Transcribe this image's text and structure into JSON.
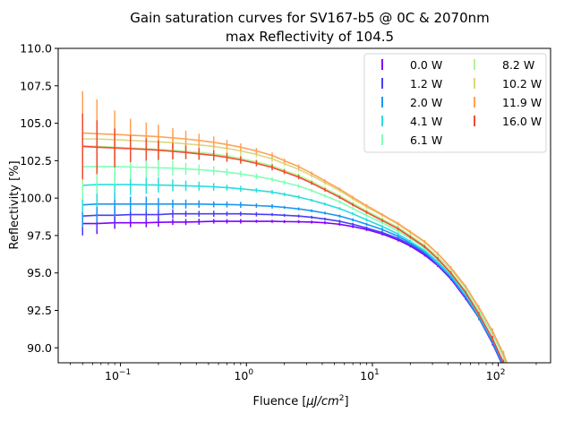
{
  "chart_data": {
    "type": "line",
    "title_lines": [
      "Gain saturation curves for SV167-b5 @ 0C & 2070nm",
      "max Reflectivity of 104.5"
    ],
    "xlabel": "Fluence [",
    "xlabel_unit": "μJ/cm",
    "xlabel_power": "2",
    "xlabel_end": "]",
    "ylabel": "Reflectivity [%]",
    "x_scale": "log",
    "xlim": [
      0.032,
      260
    ],
    "ylim": [
      89.0,
      110.0
    ],
    "x_major_ticks": [
      {
        "value": 0.1,
        "base": "10",
        "exp": "−1"
      },
      {
        "value": 1,
        "base": "10",
        "exp": "0"
      },
      {
        "value": 10,
        "base": "10",
        "exp": "1"
      },
      {
        "value": 100,
        "base": "10",
        "exp": "2"
      }
    ],
    "y_ticks": [
      "90.0",
      "92.5",
      "95.0",
      "97.5",
      "100.0",
      "102.5",
      "105.0",
      "107.5",
      "110.0"
    ],
    "legend": {
      "placement": "top-right",
      "columns": 2
    },
    "x_points": [
      0.05,
      0.065,
      0.09,
      0.12,
      0.16,
      0.2,
      0.26,
      0.33,
      0.42,
      0.55,
      0.7,
      0.9,
      1.2,
      1.6,
      2.0,
      2.6,
      3.3,
      4.2,
      5.5,
      7.0,
      9.0,
      12.0,
      16.0,
      20.0,
      26.0,
      33.0,
      42.0,
      55.0,
      70.0,
      90.0,
      110.0,
      130.0
    ],
    "series": [
      {
        "name": "0.0 W",
        "color": "#8000ff",
        "x": [
          0.05,
          0.065,
          0.09,
          0.12,
          0.16,
          0.2,
          0.26,
          0.33,
          0.42,
          0.55,
          0.7,
          0.9,
          1.2,
          1.6,
          2.0,
          2.6,
          3.3,
          4.2,
          5.5,
          7.0,
          9.0,
          12.0,
          16.0,
          20.0,
          26.0,
          33.0,
          42.0,
          55.0,
          70.0,
          90.0,
          110.0,
          130.0
        ],
        "y": [
          98.3,
          98.3,
          98.35,
          98.35,
          98.35,
          98.38,
          98.4,
          98.4,
          98.42,
          98.45,
          98.45,
          98.45,
          98.45,
          98.45,
          98.43,
          98.42,
          98.4,
          98.35,
          98.25,
          98.1,
          97.9,
          97.6,
          97.2,
          96.8,
          96.2,
          95.5,
          94.6,
          93.3,
          92.0,
          90.3,
          88.7,
          87.0
        ],
        "err": [
          0.7,
          0.7,
          0.4,
          0.3,
          0.3,
          0.3,
          0.2,
          0.2,
          0.2,
          0.15,
          0.15,
          0.15,
          0.1,
          0.1,
          0.1,
          0.1,
          0.1,
          0.1,
          0.1,
          0.1,
          0.1,
          0.1,
          0.1,
          0.1,
          0.1,
          0.1,
          0.1,
          0.1,
          0.1,
          0.15,
          0.2,
          0.2
        ]
      },
      {
        "name": "1.2 W",
        "color": "#4a3ef5",
        "x": [
          0.05,
          0.065,
          0.09,
          0.12,
          0.16,
          0.2,
          0.26,
          0.33,
          0.42,
          0.55,
          0.7,
          0.9,
          1.2,
          1.6,
          2.0,
          2.6,
          3.3,
          4.2,
          5.5,
          7.0,
          9.0,
          12.0,
          16.0,
          20.0,
          26.0,
          33.0,
          42.0,
          55.0,
          70.0,
          90.0,
          110.0,
          130.0
        ],
        "y": [
          98.8,
          98.85,
          98.85,
          98.9,
          98.9,
          98.9,
          98.95,
          98.95,
          98.95,
          98.95,
          98.95,
          98.95,
          98.92,
          98.9,
          98.85,
          98.8,
          98.72,
          98.6,
          98.45,
          98.25,
          98.0,
          97.7,
          97.3,
          96.9,
          96.3,
          95.6,
          94.7,
          93.4,
          92.0,
          90.3,
          88.7,
          87.1
        ],
        "err": [
          1.3,
          1.0,
          0.6,
          0.4,
          0.4,
          0.3,
          0.3,
          0.2,
          0.2,
          0.2,
          0.15,
          0.15,
          0.15,
          0.1,
          0.1,
          0.1,
          0.1,
          0.1,
          0.1,
          0.1,
          0.1,
          0.1,
          0.1,
          0.1,
          0.1,
          0.1,
          0.1,
          0.1,
          0.15,
          0.15,
          0.2,
          0.2
        ]
      },
      {
        "name": "2.0 W",
        "color": "#1996f3",
        "x": [
          0.05,
          0.065,
          0.09,
          0.12,
          0.16,
          0.2,
          0.26,
          0.33,
          0.42,
          0.55,
          0.7,
          0.9,
          1.2,
          1.6,
          2.0,
          2.6,
          3.3,
          4.2,
          5.5,
          7.0,
          9.0,
          12.0,
          16.0,
          20.0,
          26.0,
          33.0,
          42.0,
          55.0,
          70.0,
          90.0,
          110.0,
          130.0
        ],
        "y": [
          99.55,
          99.6,
          99.6,
          99.6,
          99.6,
          99.6,
          99.6,
          99.6,
          99.6,
          99.58,
          99.57,
          99.55,
          99.5,
          99.45,
          99.38,
          99.28,
          99.15,
          99.0,
          98.8,
          98.55,
          98.25,
          97.9,
          97.45,
          97.0,
          96.4,
          95.6,
          94.7,
          93.4,
          92.0,
          90.4,
          88.8,
          87.2
        ],
        "err": [
          1.5,
          1.2,
          0.8,
          0.5,
          0.5,
          0.4,
          0.3,
          0.3,
          0.25,
          0.2,
          0.2,
          0.2,
          0.15,
          0.15,
          0.1,
          0.1,
          0.1,
          0.1,
          0.1,
          0.1,
          0.1,
          0.1,
          0.1,
          0.1,
          0.1,
          0.1,
          0.1,
          0.1,
          0.15,
          0.15,
          0.2,
          0.2
        ]
      },
      {
        "name": "4.1 W",
        "color": "#2adddd",
        "x": [
          0.05,
          0.065,
          0.09,
          0.12,
          0.16,
          0.2,
          0.26,
          0.33,
          0.42,
          0.55,
          0.7,
          0.9,
          1.2,
          1.6,
          2.0,
          2.6,
          3.3,
          4.2,
          5.5,
          7.0,
          9.0,
          12.0,
          16.0,
          20.0,
          26.0,
          33.0,
          42.0,
          55.0,
          70.0,
          90.0,
          110.0,
          130.0
        ],
        "y": [
          100.85,
          100.9,
          100.9,
          100.9,
          100.88,
          100.87,
          100.85,
          100.82,
          100.8,
          100.75,
          100.7,
          100.62,
          100.52,
          100.4,
          100.25,
          100.07,
          99.85,
          99.6,
          99.3,
          98.95,
          98.55,
          98.1,
          97.6,
          97.1,
          96.5,
          95.75,
          94.85,
          93.6,
          92.2,
          90.6,
          89.0,
          87.4
        ],
        "err": [
          1.8,
          1.5,
          1.0,
          0.7,
          0.6,
          0.5,
          0.4,
          0.35,
          0.3,
          0.25,
          0.2,
          0.2,
          0.15,
          0.15,
          0.12,
          0.12,
          0.1,
          0.1,
          0.1,
          0.1,
          0.1,
          0.1,
          0.1,
          0.1,
          0.1,
          0.1,
          0.1,
          0.1,
          0.15,
          0.2,
          0.2,
          0.2
        ]
      },
      {
        "name": "6.1 W",
        "color": "#80ffb4",
        "x": [
          0.05,
          0.065,
          0.09,
          0.12,
          0.16,
          0.2,
          0.26,
          0.33,
          0.42,
          0.55,
          0.7,
          0.9,
          1.2,
          1.6,
          2.0,
          2.6,
          3.3,
          4.2,
          5.5,
          7.0,
          9.0,
          12.0,
          16.0,
          20.0,
          26.0,
          33.0,
          42.0,
          55.0,
          70.0,
          90.0,
          110.0,
          130.0
        ],
        "y": [
          102.1,
          102.1,
          102.1,
          102.08,
          102.05,
          102.02,
          102.0,
          101.95,
          101.9,
          101.82,
          101.73,
          101.62,
          101.45,
          101.25,
          101.05,
          100.8,
          100.5,
          100.15,
          99.75,
          99.3,
          98.85,
          98.35,
          97.8,
          97.3,
          96.65,
          95.9,
          95.0,
          93.8,
          92.45,
          90.9,
          89.4,
          87.8
        ],
        "err": [
          2.2,
          1.8,
          1.2,
          0.8,
          0.7,
          0.6,
          0.5,
          0.4,
          0.35,
          0.3,
          0.25,
          0.2,
          0.2,
          0.15,
          0.15,
          0.12,
          0.12,
          0.1,
          0.1,
          0.1,
          0.1,
          0.1,
          0.1,
          0.1,
          0.1,
          0.1,
          0.1,
          0.1,
          0.15,
          0.2,
          0.2,
          0.25
        ]
      },
      {
        "name": "8.2 W",
        "color": "#b2f396",
        "x": [
          0.05,
          0.065,
          0.09,
          0.12,
          0.16,
          0.2,
          0.26,
          0.33,
          0.42,
          0.55,
          0.7,
          0.9,
          1.2,
          1.6,
          2.0,
          2.6,
          3.3,
          4.2,
          5.5,
          7.0,
          9.0,
          12.0,
          16.0,
          20.0,
          26.0,
          33.0,
          42.0,
          55.0,
          70.0,
          90.0,
          110.0,
          130.0
        ],
        "y": [
          103.5,
          103.45,
          103.4,
          103.35,
          103.3,
          103.25,
          103.2,
          103.12,
          103.05,
          102.95,
          102.82,
          102.65,
          102.42,
          102.15,
          101.85,
          101.5,
          101.1,
          100.65,
          100.15,
          99.65,
          99.15,
          98.6,
          98.05,
          97.5,
          96.85,
          96.1,
          95.2,
          94.0,
          92.65,
          91.1,
          89.6,
          88.0
        ],
        "err": [
          2.5,
          2.0,
          1.4,
          1.0,
          0.8,
          0.7,
          0.6,
          0.5,
          0.4,
          0.35,
          0.3,
          0.25,
          0.2,
          0.2,
          0.15,
          0.15,
          0.12,
          0.12,
          0.1,
          0.1,
          0.1,
          0.1,
          0.1,
          0.1,
          0.1,
          0.1,
          0.1,
          0.1,
          0.15,
          0.2,
          0.2,
          0.25
        ]
      },
      {
        "name": "10.2 W",
        "color": "#dcd67c",
        "x": [
          0.05,
          0.065,
          0.09,
          0.12,
          0.16,
          0.2,
          0.26,
          0.33,
          0.42,
          0.55,
          0.7,
          0.9,
          1.2,
          1.6,
          2.0,
          2.6,
          3.3,
          4.2,
          5.5,
          7.0,
          9.0,
          12.0,
          16.0,
          20.0,
          26.0,
          33.0,
          42.0,
          55.0,
          70.0,
          90.0,
          110.0,
          130.0
        ],
        "y": [
          103.95,
          103.95,
          103.9,
          103.85,
          103.8,
          103.75,
          103.7,
          103.62,
          103.55,
          103.45,
          103.32,
          103.15,
          102.92,
          102.62,
          102.3,
          101.92,
          101.5,
          101.02,
          100.5,
          99.95,
          99.4,
          98.85,
          98.25,
          97.7,
          97.05,
          96.3,
          95.35,
          94.1,
          92.7,
          91.1,
          89.6,
          88.0
        ],
        "err": [
          2.6,
          2.1,
          1.5,
          1.0,
          0.9,
          0.75,
          0.6,
          0.5,
          0.45,
          0.4,
          0.3,
          0.25,
          0.2,
          0.2,
          0.15,
          0.15,
          0.12,
          0.12,
          0.1,
          0.1,
          0.1,
          0.1,
          0.1,
          0.1,
          0.1,
          0.1,
          0.1,
          0.1,
          0.15,
          0.2,
          0.2,
          0.25
        ]
      },
      {
        "name": "11.9 W",
        "color": "#ffa256",
        "x": [
          0.05,
          0.065,
          0.09,
          0.12,
          0.16,
          0.2,
          0.26,
          0.33,
          0.42,
          0.55,
          0.7,
          0.9,
          1.2,
          1.6,
          2.0,
          2.6,
          3.3,
          4.2,
          5.5,
          7.0,
          9.0,
          12.0,
          16.0,
          20.0,
          26.0,
          33.0,
          42.0,
          55.0,
          70.0,
          90.0,
          110.0,
          130.0
        ],
        "y": [
          104.35,
          104.3,
          104.25,
          104.2,
          104.15,
          104.1,
          104.02,
          103.95,
          103.85,
          103.72,
          103.58,
          103.4,
          103.15,
          102.85,
          102.5,
          102.1,
          101.65,
          101.15,
          100.6,
          100.05,
          99.5,
          98.9,
          98.3,
          97.75,
          97.1,
          96.3,
          95.35,
          94.1,
          92.7,
          91.1,
          89.55,
          87.95
        ],
        "err": [
          2.8,
          2.3,
          1.6,
          1.1,
          0.9,
          0.8,
          0.65,
          0.55,
          0.45,
          0.4,
          0.3,
          0.25,
          0.2,
          0.2,
          0.15,
          0.15,
          0.12,
          0.12,
          0.1,
          0.1,
          0.1,
          0.1,
          0.1,
          0.1,
          0.1,
          0.1,
          0.1,
          0.1,
          0.15,
          0.2,
          0.2,
          0.25
        ]
      },
      {
        "name": "16.0 W",
        "color": "#f14a30",
        "x": [
          0.05,
          0.065,
          0.09,
          0.12,
          0.16,
          0.2,
          0.26,
          0.33,
          0.42,
          0.55,
          0.7,
          0.9,
          1.2,
          1.6,
          2.0,
          2.6,
          3.3,
          4.2,
          5.5,
          7.0,
          9.0,
          12.0,
          16.0,
          20.0,
          26.0,
          33.0,
          42.0,
          55.0,
          70.0,
          90.0,
          110.0,
          130.0
        ],
        "y": [
          103.45,
          103.4,
          103.35,
          103.3,
          103.25,
          103.2,
          103.12,
          103.05,
          102.95,
          102.85,
          102.72,
          102.55,
          102.32,
          102.05,
          101.75,
          101.4,
          101.0,
          100.55,
          100.05,
          99.55,
          99.05,
          98.5,
          97.95,
          97.4,
          96.75,
          95.95,
          95.0,
          93.7,
          92.25,
          90.6,
          89.0,
          87.3
        ],
        "err": [
          2.2,
          1.8,
          1.3,
          0.9,
          0.75,
          0.65,
          0.55,
          0.45,
          0.4,
          0.35,
          0.3,
          0.25,
          0.2,
          0.2,
          0.15,
          0.15,
          0.12,
          0.12,
          0.1,
          0.1,
          0.1,
          0.1,
          0.1,
          0.1,
          0.1,
          0.1,
          0.1,
          0.1,
          0.15,
          0.2,
          0.2,
          0.25
        ]
      }
    ]
  }
}
